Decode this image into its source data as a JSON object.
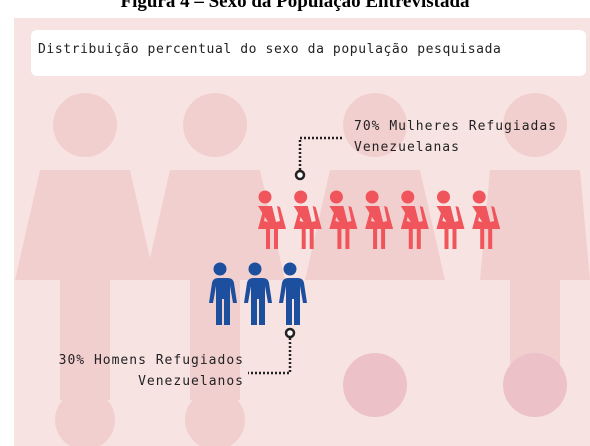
{
  "chart_data": {
    "type": "pictogram",
    "title": "Figura 4 – Sexo da População Entrevistada",
    "subtitle": "Distribuição percentual do sexo da população pesquisada",
    "categories": [
      "Mulheres Refugiadas\nVenezuelanas",
      "Homens Refugiados\nVenezuelanos"
    ],
    "values": [
      70,
      30
    ],
    "value_labels": [
      "70%",
      "30%"
    ],
    "colors": [
      "#f0555b",
      "#1d4f9f"
    ]
  }
}
